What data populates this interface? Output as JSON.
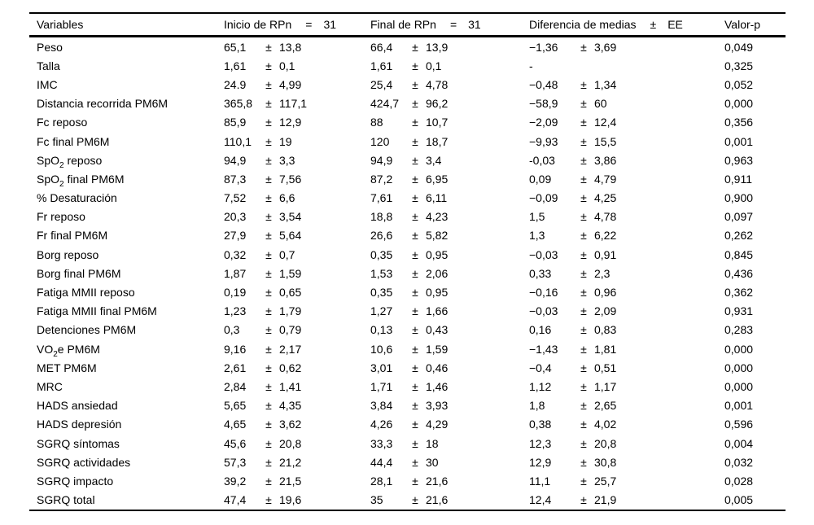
{
  "table": {
    "headers": {
      "variables": "Variables",
      "inicio": {
        "label": "Inicio de RPn",
        "eq": "=",
        "n": "31"
      },
      "final": {
        "label": "Final de RPn",
        "eq": "=",
        "n": "31"
      },
      "diferencia": {
        "label": "Diferencia de medias",
        "pm": "±",
        "ee": "EE"
      },
      "pvalue": "Valor-p"
    },
    "rows": [
      {
        "name": [
          [
            "Peso",
            false
          ]
        ],
        "g1": [
          "65,1",
          "±",
          "13,8"
        ],
        "g2": [
          "66,4",
          "±",
          "13,9"
        ],
        "g3": [
          "−1,36",
          "±",
          "3,69"
        ],
        "p": "0,049"
      },
      {
        "name": [
          [
            "Talla",
            false
          ]
        ],
        "g1": [
          "1,61",
          "±",
          "0,1"
        ],
        "g2": [
          "1,61",
          "±",
          "0,1"
        ],
        "g3": [
          "-",
          "",
          ""
        ],
        "p": "0,325"
      },
      {
        "name": [
          [
            "IMC",
            false
          ]
        ],
        "g1": [
          "24.9",
          "±",
          "4,99"
        ],
        "g2": [
          "25,4",
          "±",
          "4,78"
        ],
        "g3": [
          "−0,48",
          "±",
          "1,34"
        ],
        "p": "0,052"
      },
      {
        "name": [
          [
            "Distancia recorrida PM6M",
            false
          ]
        ],
        "g1": [
          "365,8",
          "±",
          "117,1"
        ],
        "g2": [
          "424,7",
          "±",
          "96,2"
        ],
        "g3": [
          "−58,9",
          "±",
          "60"
        ],
        "p": "0,000"
      },
      {
        "name": [
          [
            "Fc reposo",
            false
          ]
        ],
        "g1": [
          "85,9",
          "±",
          "12,9"
        ],
        "g2": [
          "88",
          "±",
          "10,7"
        ],
        "g3": [
          "−2,09",
          "±",
          "12,4"
        ],
        "p": "0,356"
      },
      {
        "name": [
          [
            "Fc final PM6M",
            false
          ]
        ],
        "g1": [
          "110,1",
          "±",
          "19"
        ],
        "g2": [
          "120",
          "±",
          "18,7"
        ],
        "g3": [
          "−9,93",
          "±",
          "15,5"
        ],
        "p": "0,001"
      },
      {
        "name": [
          [
            "SpO",
            false
          ],
          [
            "2",
            true
          ],
          [
            " reposo",
            false
          ]
        ],
        "g1": [
          "94,9",
          "±",
          "3,3"
        ],
        "g2": [
          "94,9",
          "±",
          "3,4"
        ],
        "g3": [
          "-0,03",
          "±",
          "3,86"
        ],
        "p": "0,963"
      },
      {
        "name": [
          [
            "SpO",
            false
          ],
          [
            "2",
            true
          ],
          [
            " final PM6M",
            false
          ]
        ],
        "g1": [
          "87,3",
          "±",
          "7,56"
        ],
        "g2": [
          "87,2",
          "±",
          "6,95"
        ],
        "g3": [
          "0,09",
          "±",
          "4,79"
        ],
        "p": "0,911"
      },
      {
        "name": [
          [
            "% Desaturación",
            false
          ]
        ],
        "g1": [
          "7,52",
          "±",
          "6,6"
        ],
        "g2": [
          "7,61",
          "±",
          "6,11"
        ],
        "g3": [
          "−0,09",
          "±",
          "4,25"
        ],
        "p": "0,900"
      },
      {
        "name": [
          [
            "Fr reposo",
            false
          ]
        ],
        "g1": [
          "20,3",
          "±",
          "3,54"
        ],
        "g2": [
          "18,8",
          "±",
          "4,23"
        ],
        "g3": [
          "1,5",
          "±",
          "4,78"
        ],
        "p": "0,097"
      },
      {
        "name": [
          [
            "Fr final PM6M",
            false
          ]
        ],
        "g1": [
          "27,9",
          "±",
          "5,64"
        ],
        "g2": [
          "26,6",
          "±",
          "5,82"
        ],
        "g3": [
          "1,3",
          "±",
          "6,22"
        ],
        "p": "0,262"
      },
      {
        "name": [
          [
            "Borg reposo",
            false
          ]
        ],
        "g1": [
          "0,32",
          "±",
          "0,7"
        ],
        "g2": [
          "0,35",
          "±",
          "0,95"
        ],
        "g3": [
          "−0,03",
          "±",
          "0,91"
        ],
        "p": "0,845"
      },
      {
        "name": [
          [
            "Borg final PM6M",
            false
          ]
        ],
        "g1": [
          "1,87",
          "±",
          "1,59"
        ],
        "g2": [
          "1,53",
          "±",
          "2,06"
        ],
        "g3": [
          "0,33",
          "±",
          "2,3"
        ],
        "p": "0,436"
      },
      {
        "name": [
          [
            "Fatiga MMII reposo",
            false
          ]
        ],
        "g1": [
          "0,19",
          "±",
          "0,65"
        ],
        "g2": [
          "0,35",
          "±",
          "0,95"
        ],
        "g3": [
          "−0,16",
          "±",
          "0,96"
        ],
        "p": "0,362"
      },
      {
        "name": [
          [
            "Fatiga MMII final PM6M",
            false
          ]
        ],
        "g1": [
          "1,23",
          "±",
          "1,79"
        ],
        "g2": [
          "1,27",
          "±",
          "1,66"
        ],
        "g3": [
          "−0,03",
          "±",
          "2,09"
        ],
        "p": "0,931"
      },
      {
        "name": [
          [
            "Detenciones PM6M",
            false
          ]
        ],
        "g1": [
          "0,3",
          "±",
          "0,79"
        ],
        "g2": [
          "0,13",
          "±",
          "0,43"
        ],
        "g3": [
          "0,16",
          "±",
          "0,83"
        ],
        "p": "0,283"
      },
      {
        "name": [
          [
            "VO",
            false
          ],
          [
            "2",
            true
          ],
          [
            "e PM6M",
            false
          ]
        ],
        "g1": [
          "9,16",
          "±",
          "2,17"
        ],
        "g2": [
          "10,6",
          "±",
          "1,59"
        ],
        "g3": [
          "−1,43",
          "±",
          "1,81"
        ],
        "p": "0,000"
      },
      {
        "name": [
          [
            "MET PM6M",
            false
          ]
        ],
        "g1": [
          "2,61",
          "±",
          "0,62"
        ],
        "g2": [
          "3,01",
          "±",
          "0,46"
        ],
        "g3": [
          "−0,4",
          "±",
          "0,51"
        ],
        "p": "0,000"
      },
      {
        "name": [
          [
            "MRC",
            false
          ]
        ],
        "g1": [
          "2,84",
          "±",
          "1,41"
        ],
        "g2": [
          "1,71",
          "±",
          "1,46"
        ],
        "g3": [
          "1,12",
          "±",
          "1,17"
        ],
        "p": "0,000"
      },
      {
        "name": [
          [
            "HADS ansiedad",
            false
          ]
        ],
        "g1": [
          "5,65",
          "±",
          "4,35"
        ],
        "g2": [
          "3,84",
          "±",
          "3,93"
        ],
        "g3": [
          "1,8",
          "±",
          "2,65"
        ],
        "p": "0,001"
      },
      {
        "name": [
          [
            "HADS depresión",
            false
          ]
        ],
        "g1": [
          "4,65",
          "±",
          "3,62"
        ],
        "g2": [
          "4,26",
          "±",
          "4,29"
        ],
        "g3": [
          "0,38",
          "±",
          "4,02"
        ],
        "p": "0,596"
      },
      {
        "name": [
          [
            "SGRQ síntomas",
            false
          ]
        ],
        "g1": [
          "45,6",
          "±",
          "20,8"
        ],
        "g2": [
          "33,3",
          "±",
          "18"
        ],
        "g3": [
          "12,3",
          "±",
          "20,8"
        ],
        "p": "0,004"
      },
      {
        "name": [
          [
            "SGRQ actividades",
            false
          ]
        ],
        "g1": [
          "57,3",
          "±",
          "21,2"
        ],
        "g2": [
          "44,4",
          "±",
          "30"
        ],
        "g3": [
          "12,9",
          "±",
          "30,8"
        ],
        "p": "0,032"
      },
      {
        "name": [
          [
            "SGRQ impacto",
            false
          ]
        ],
        "g1": [
          "39,2",
          "±",
          "21,5"
        ],
        "g2": [
          "28,1",
          "±",
          "21,6"
        ],
        "g3": [
          "11,1",
          "±",
          "25,7"
        ],
        "p": "0,028"
      },
      {
        "name": [
          [
            "SGRQ total",
            false
          ]
        ],
        "g1": [
          "47,4",
          "±",
          "19,6"
        ],
        "g2": [
          "35",
          "±",
          "21,6"
        ],
        "g3": [
          "12,4",
          "±",
          "21,9"
        ],
        "p": "0,005"
      }
    ]
  }
}
